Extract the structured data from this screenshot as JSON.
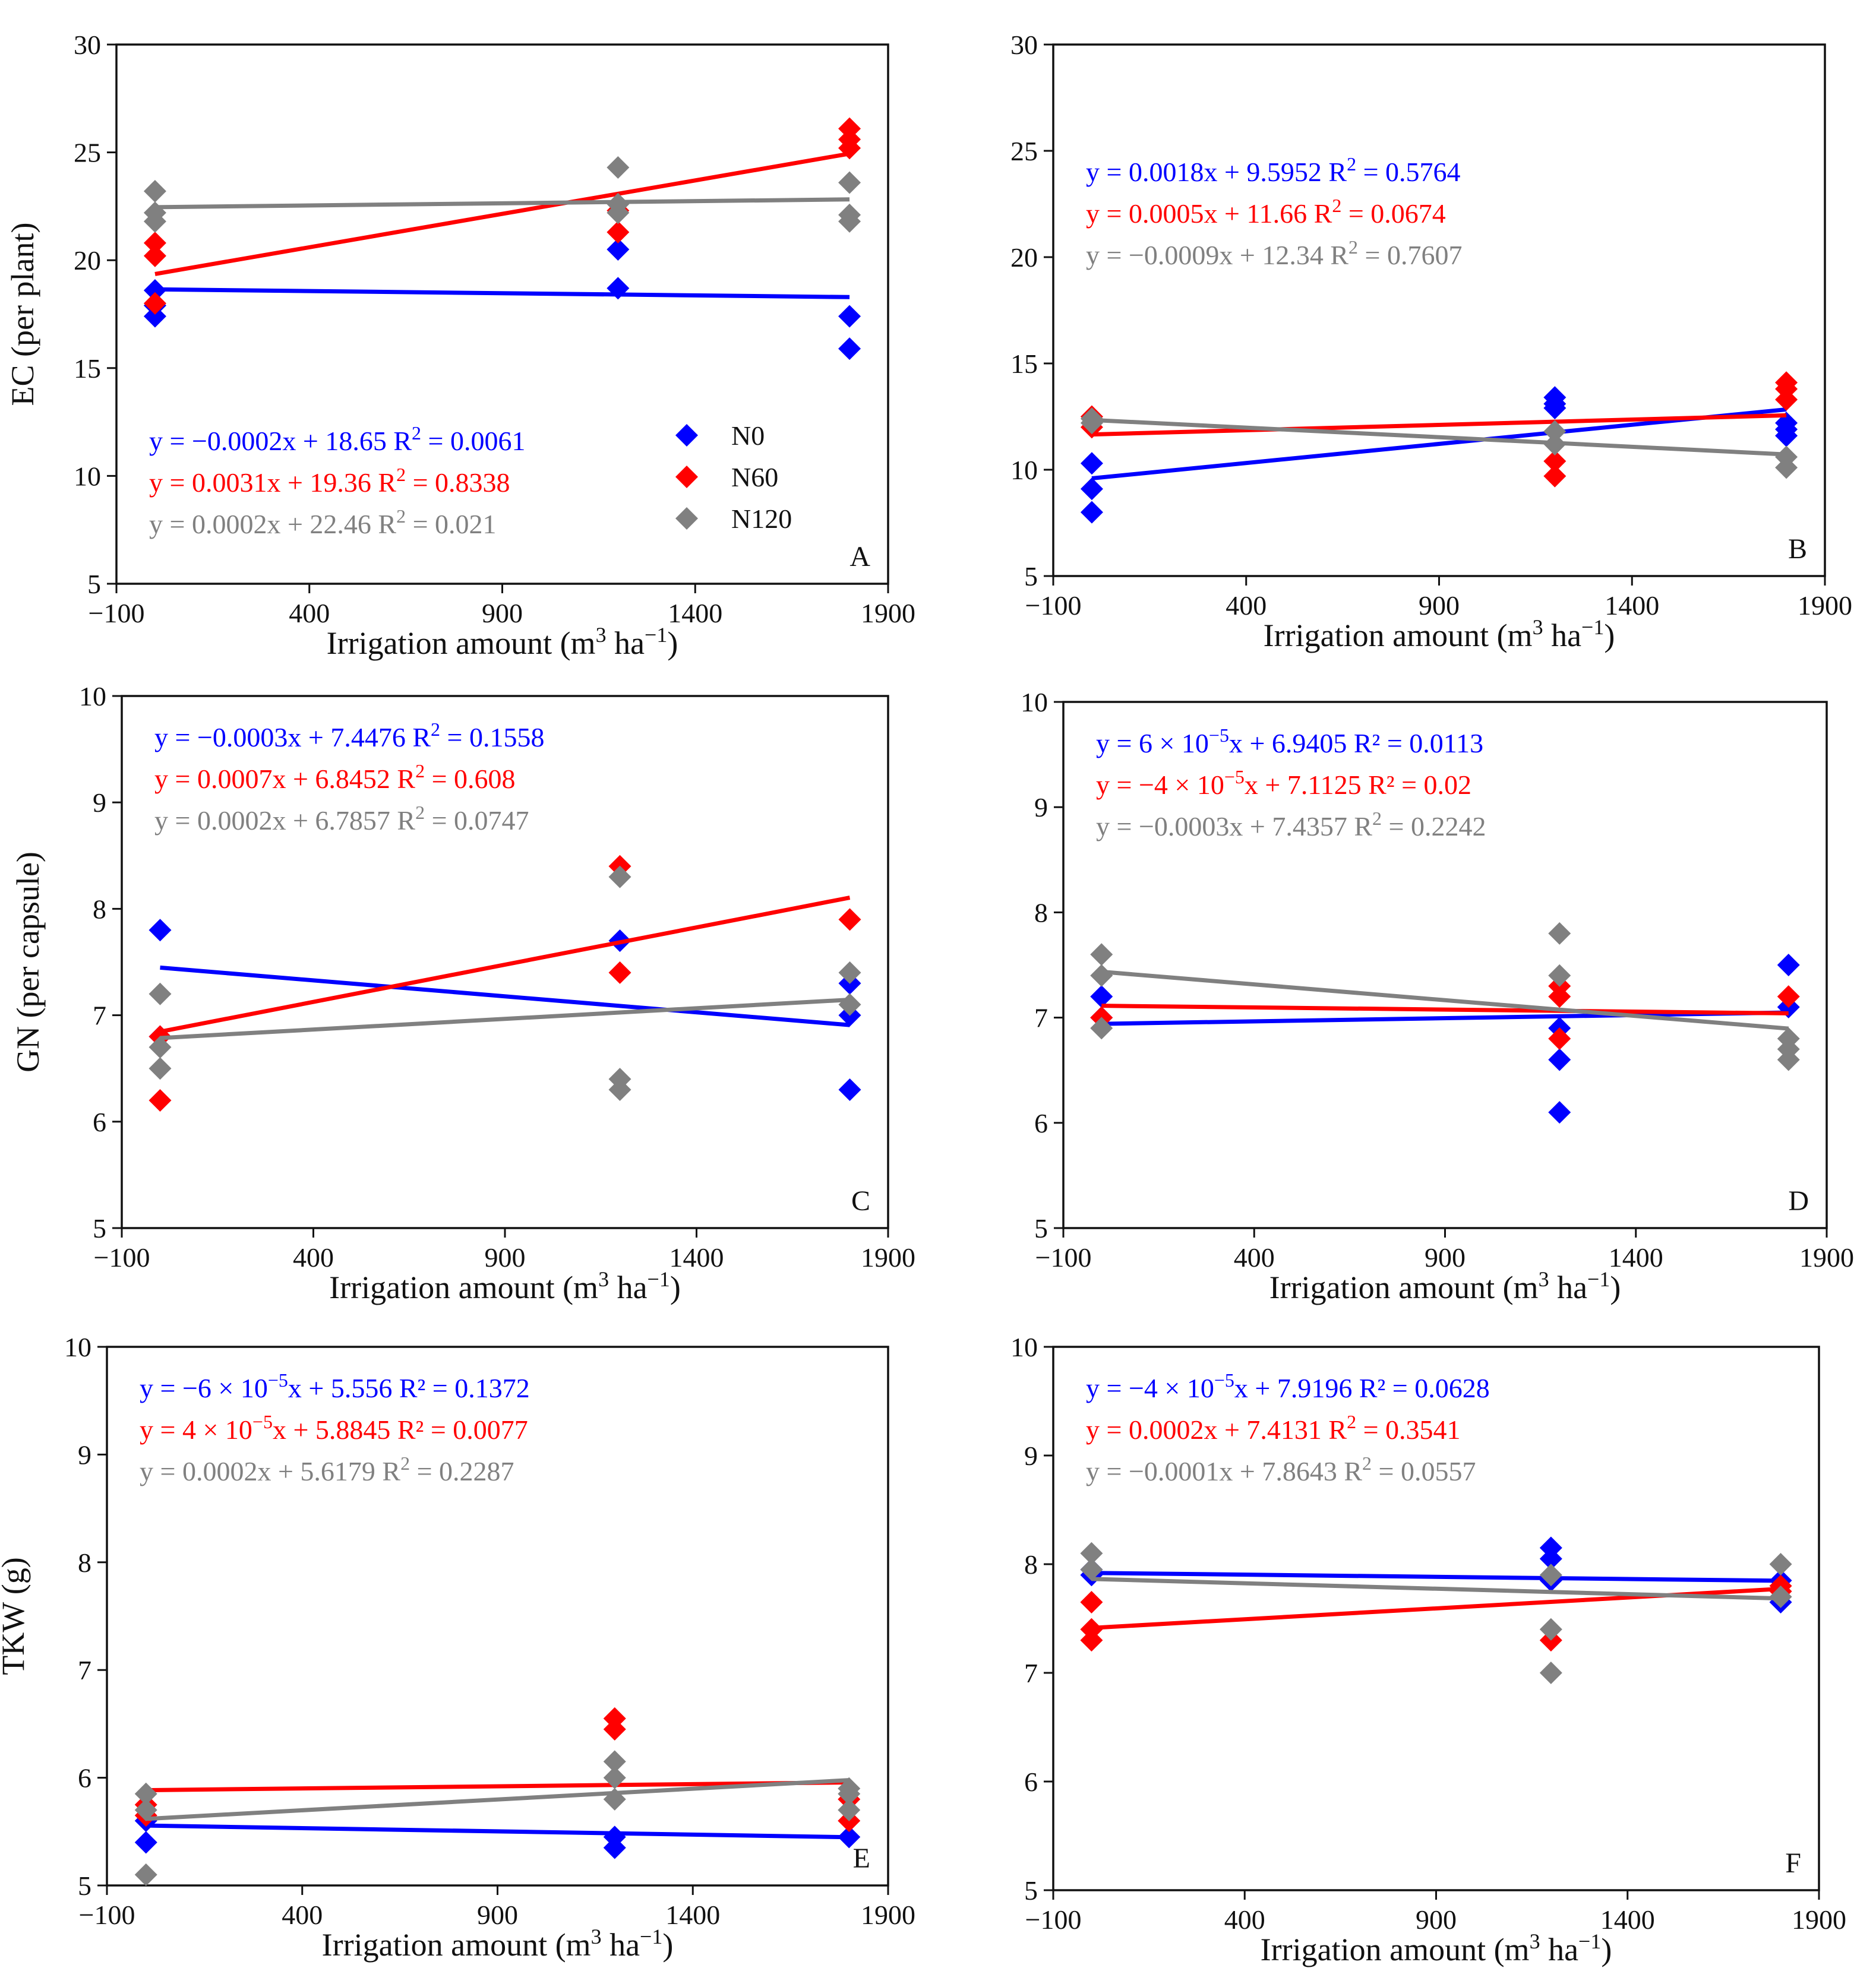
{
  "colors": {
    "N0": "#0000ff",
    "N60": "#ff0000",
    "N120": "#808080"
  },
  "legend": [
    {
      "key": "N0",
      "label": "N0"
    },
    {
      "key": "N60",
      "label": "N60"
    },
    {
      "key": "N120",
      "label": "N120"
    }
  ],
  "chart_data": [
    {
      "type": "scatter",
      "panel": "A",
      "ylabel": "EC (per plant)",
      "xlabel_main": "Irrigation amount (m",
      "xlabel_sup1": "3",
      "xlabel_mid": " ha",
      "xlabel_sup2": "−1",
      "xlabel_end": ")",
      "xlim": [
        -100,
        1900
      ],
      "ylim": [
        5,
        30
      ],
      "xticks": [
        -100,
        400,
        900,
        1400,
        1900
      ],
      "yticks": [
        5,
        10,
        15,
        20,
        25,
        30
      ],
      "equation_anchor": "bottom-left",
      "show_legend": true,
      "series": [
        {
          "name": "N0",
          "x": [
            0,
            0,
            0,
            1200,
            1200,
            1800,
            1800
          ],
          "y": [
            17.4,
            17.9,
            18.6,
            18.7,
            20.5,
            15.9,
            17.4
          ],
          "eq_main": "y = −0.0002x + 18.65   R",
          "eq_sup": "2",
          "eq_end": " = 0.0061",
          "fit": [
            -0.0002,
            18.65
          ]
        },
        {
          "name": "N60",
          "x": [
            0,
            0,
            0,
            1200,
            1200,
            1800,
            1800,
            1800
          ],
          "y": [
            18.0,
            20.2,
            20.8,
            21.3,
            22.3,
            25.2,
            25.6,
            26.1
          ],
          "eq_main": "y = 0.0031x + 19.36   R",
          "eq_sup": "2",
          "eq_end": " = 0.8338",
          "fit": [
            0.0031,
            19.36
          ]
        },
        {
          "name": "N120",
          "x": [
            0,
            0,
            0,
            1200,
            1200,
            1200,
            1800,
            1800,
            1800
          ],
          "y": [
            21.8,
            22.2,
            23.2,
            22.2,
            22.6,
            24.3,
            21.8,
            22.1,
            23.6
          ],
          "eq_main": "y = 0.0002x + 22.46   R",
          "eq_sup": "2",
          "eq_end": " = 0.021",
          "fit": [
            0.0002,
            22.46
          ]
        }
      ]
    },
    {
      "type": "scatter",
      "panel": "B",
      "ylabel": "",
      "xlabel_main": "Irrigation amount (m",
      "xlabel_sup1": "3",
      "xlabel_mid": " ha",
      "xlabel_sup2": "−1",
      "xlabel_end": ")",
      "xlim": [
        -100,
        1900
      ],
      "ylim": [
        5,
        30
      ],
      "xticks": [
        -100,
        400,
        900,
        1400,
        1900
      ],
      "yticks": [
        5,
        10,
        15,
        20,
        25,
        30
      ],
      "equation_anchor": "upper-left",
      "show_legend": false,
      "series": [
        {
          "name": "N0",
          "x": [
            0,
            0,
            0,
            1200,
            1200,
            1200,
            1800,
            1800,
            1800
          ],
          "y": [
            8.0,
            9.1,
            10.3,
            12.9,
            13.1,
            13.4,
            11.6,
            11.9,
            12.2
          ],
          "eq_main": "y = 0.0018x + 9.5952   R",
          "eq_sup": "2",
          "eq_end": " = 0.5764",
          "fit": [
            0.0018,
            9.5952
          ]
        },
        {
          "name": "N60",
          "x": [
            0,
            0,
            1200,
            1200,
            1800,
            1800,
            1800
          ],
          "y": [
            12.0,
            12.5,
            9.7,
            10.4,
            13.3,
            13.8,
            14.1
          ],
          "eq_main": "y = 0.0005x + 11.66   R",
          "eq_sup": "2",
          "eq_end": " = 0.0674",
          "fit": [
            0.0005,
            11.66
          ]
        },
        {
          "name": "N120",
          "x": [
            0,
            0,
            1200,
            1200,
            1800,
            1800
          ],
          "y": [
            12.2,
            12.4,
            11.2,
            11.8,
            10.1,
            10.6
          ],
          "eq_main": "y = −0.0009x + 12.34   R",
          "eq_sup": "2",
          "eq_end": " = 0.7607",
          "fit": [
            -0.0009,
            12.34
          ]
        }
      ]
    },
    {
      "type": "scatter",
      "panel": "C",
      "ylabel": "GN (per capsule)",
      "xlabel_main": "Irrigation amount (m",
      "xlabel_sup1": "3",
      "xlabel_mid": " ha",
      "xlabel_sup2": "−1",
      "xlabel_end": ")",
      "xlim": [
        -100,
        1900
      ],
      "ylim": [
        5,
        10
      ],
      "xticks": [
        -100,
        400,
        900,
        1400,
        1900
      ],
      "yticks": [
        5,
        6,
        7,
        8,
        9,
        10
      ],
      "equation_anchor": "upper-left",
      "show_legend": false,
      "series": [
        {
          "name": "N0",
          "x": [
            0,
            0,
            1200,
            1800,
            1800,
            1800
          ],
          "y": [
            7.8,
            6.8,
            7.7,
            7.3,
            7.0,
            6.3
          ],
          "eq_main": "y = −0.0003x + 7.4476   R",
          "eq_sup": "2",
          "eq_end": " = 0.1558",
          "fit": [
            -0.0003,
            7.4476
          ]
        },
        {
          "name": "N60",
          "x": [
            0,
            0,
            1200,
            1200,
            1800
          ],
          "y": [
            6.8,
            6.2,
            8.4,
            7.4,
            7.9
          ],
          "eq_main": "y = 0.0007x + 6.8452   R",
          "eq_sup": "2",
          "eq_end": " = 0.608",
          "fit": [
            0.0007,
            6.8452
          ]
        },
        {
          "name": "N120",
          "x": [
            0,
            0,
            0,
            1200,
            1200,
            1200,
            1800,
            1800
          ],
          "y": [
            7.2,
            6.7,
            6.5,
            8.3,
            6.4,
            6.3,
            7.4,
            7.1
          ],
          "eq_main": "y = 0.0002x + 6.7857   R",
          "eq_sup": "2",
          "eq_end": " = 0.0747",
          "fit": [
            0.0002,
            6.7857
          ]
        }
      ]
    },
    {
      "type": "scatter",
      "panel": "D",
      "ylabel": "",
      "xlabel_main": "Irrigation amount (m",
      "xlabel_sup1": "3",
      "xlabel_mid": " ha",
      "xlabel_sup2": "−1",
      "xlabel_end": ")",
      "xlim": [
        -100,
        1900
      ],
      "ylim": [
        5,
        10
      ],
      "xticks": [
        -100,
        400,
        900,
        1400,
        1900
      ],
      "yticks": [
        5,
        6,
        7,
        8,
        9,
        10
      ],
      "equation_anchor": "upper-left",
      "show_legend": false,
      "series": [
        {
          "name": "N0",
          "x": [
            0,
            0,
            1200,
            1200,
            1200,
            1800,
            1800
          ],
          "y": [
            7.2,
            7.0,
            6.9,
            6.6,
            6.1,
            7.5,
            7.1
          ],
          "eq_main": "y = 6 × 10",
          "eq_sup": "−5",
          "eq_end": "x + 6.9405   R² = 0.0113",
          "fit": [
            6e-05,
            6.9405
          ]
        },
        {
          "name": "N60",
          "x": [
            0,
            1200,
            1200,
            1200,
            1800
          ],
          "y": [
            7.0,
            7.3,
            7.2,
            6.8,
            7.2
          ],
          "eq_main": "y = −4 × 10",
          "eq_sup": "−5",
          "eq_end": "x + 7.1125   R² = 0.02",
          "fit": [
            -4e-05,
            7.1125
          ]
        },
        {
          "name": "N120",
          "x": [
            0,
            0,
            0,
            1200,
            1200,
            1800,
            1800,
            1800
          ],
          "y": [
            7.6,
            7.4,
            6.9,
            7.8,
            7.4,
            6.8,
            6.7,
            6.6
          ],
          "eq_main": "y = −0.0003x + 7.4357   R",
          "eq_sup": "2",
          "eq_end": " = 0.2242",
          "fit": [
            -0.0003,
            7.4357
          ]
        }
      ]
    },
    {
      "type": "scatter",
      "panel": "E",
      "ylabel": "TKW (g)",
      "xlabel_main": "Irrigation amount (m",
      "xlabel_sup1": "3",
      "xlabel_mid": " ha",
      "xlabel_sup2": "−1",
      "xlabel_end": ")",
      "xlim": [
        -100,
        1900
      ],
      "ylim": [
        5,
        10
      ],
      "xticks": [
        -100,
        400,
        900,
        1400,
        1900
      ],
      "yticks": [
        5,
        6,
        7,
        8,
        9,
        10
      ],
      "equation_anchor": "upper-left",
      "show_legend": false,
      "series": [
        {
          "name": "N0",
          "x": [
            0,
            0,
            1200,
            1200,
            1800
          ],
          "y": [
            5.6,
            5.4,
            5.45,
            5.35,
            5.45
          ],
          "eq_main": "y = −6 × 10",
          "eq_sup": "−5",
          "eq_end": "x + 5.556   R² = 0.1372",
          "fit": [
            -6e-05,
            5.556
          ]
        },
        {
          "name": "N60",
          "x": [
            0,
            0,
            1200,
            1200,
            1800,
            1800
          ],
          "y": [
            5.75,
            5.65,
            6.55,
            6.45,
            5.8,
            5.6
          ],
          "eq_main": "y = 4 × 10",
          "eq_sup": "−5",
          "eq_end": "x + 5.8845   R² = 0.0077",
          "fit": [
            4e-05,
            5.8845
          ]
        },
        {
          "name": "N120",
          "x": [
            0,
            0,
            0,
            1200,
            1200,
            1200,
            1800,
            1800,
            1800
          ],
          "y": [
            5.85,
            5.7,
            5.1,
            6.15,
            6.0,
            5.8,
            5.9,
            5.85,
            5.7
          ],
          "eq_main": "y = 0.0002x + 5.6179   R",
          "eq_sup": "2",
          "eq_end": " = 0.2287",
          "fit": [
            0.0002,
            5.6179
          ]
        }
      ]
    },
    {
      "type": "scatter",
      "panel": "F",
      "ylabel": "",
      "xlabel_main": "Irrigation amount (m",
      "xlabel_sup1": "3",
      "xlabel_mid": " ha",
      "xlabel_sup2": "−1",
      "xlabel_end": ")",
      "xlim": [
        -100,
        1900
      ],
      "ylim": [
        5,
        10
      ],
      "xticks": [
        -100,
        400,
        900,
        1400,
        1900
      ],
      "yticks": [
        5,
        6,
        7,
        8,
        9,
        10
      ],
      "equation_anchor": "upper-left",
      "show_legend": false,
      "series": [
        {
          "name": "N0",
          "x": [
            0,
            0,
            1200,
            1200,
            1200,
            1800,
            1800
          ],
          "y": [
            7.95,
            7.9,
            8.15,
            8.05,
            7.85,
            7.85,
            7.65
          ],
          "eq_main": "y = −4 × 10",
          "eq_sup": "−5",
          "eq_end": "x + 7.9196   R² = 0.0628",
          "fit": [
            -4e-05,
            7.9196
          ]
        },
        {
          "name": "N60",
          "x": [
            0,
            0,
            0,
            1200,
            1800,
            1800
          ],
          "y": [
            7.65,
            7.4,
            7.3,
            7.3,
            7.8,
            7.75
          ],
          "eq_main": "y = 0.0002x + 7.4131   R",
          "eq_sup": "2",
          "eq_end": " = 0.3541",
          "fit": [
            0.0002,
            7.4131
          ]
        },
        {
          "name": "N120",
          "x": [
            0,
            0,
            1200,
            1200,
            1200,
            1800,
            1800
          ],
          "y": [
            8.1,
            7.95,
            7.9,
            7.4,
            7.0,
            8.0,
            7.7
          ],
          "eq_main": "y = −0.0001x + 7.8643   R",
          "eq_sup": "2",
          "eq_end": " = 0.0557",
          "fit": [
            -0.0001,
            7.8643
          ]
        }
      ]
    }
  ]
}
